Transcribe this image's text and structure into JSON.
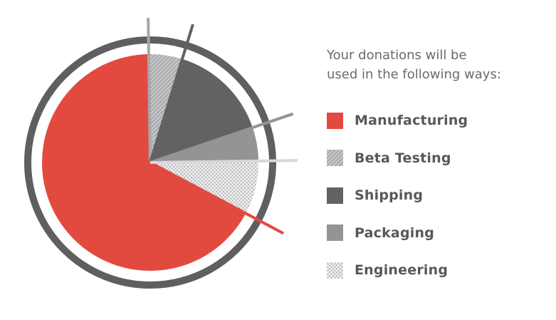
{
  "legend": {
    "title_line1": "Your donations will be",
    "title_line2": "used in the following ways:"
  },
  "chart_data": {
    "type": "pie",
    "categories": [
      "Manufacturing",
      "Beta Testing",
      "Shipping",
      "Packaging",
      "Engineering"
    ],
    "values": [
      67,
      5,
      15,
      5,
      8
    ],
    "colors": {
      "Manufacturing": "#e24a3f",
      "Beta Testing": "#a7a7a9",
      "Shipping": "#626265",
      "Packaging": "#949496",
      "Engineering": "#d6d6d8",
      "ring": "#5f5f62"
    },
    "patterns": {
      "Manufacturing": "solid",
      "Beta Testing": "hatch",
      "Shipping": "solid",
      "Packaging": "solid",
      "Engineering": "dots"
    },
    "title": "",
    "legend_position": "right"
  }
}
